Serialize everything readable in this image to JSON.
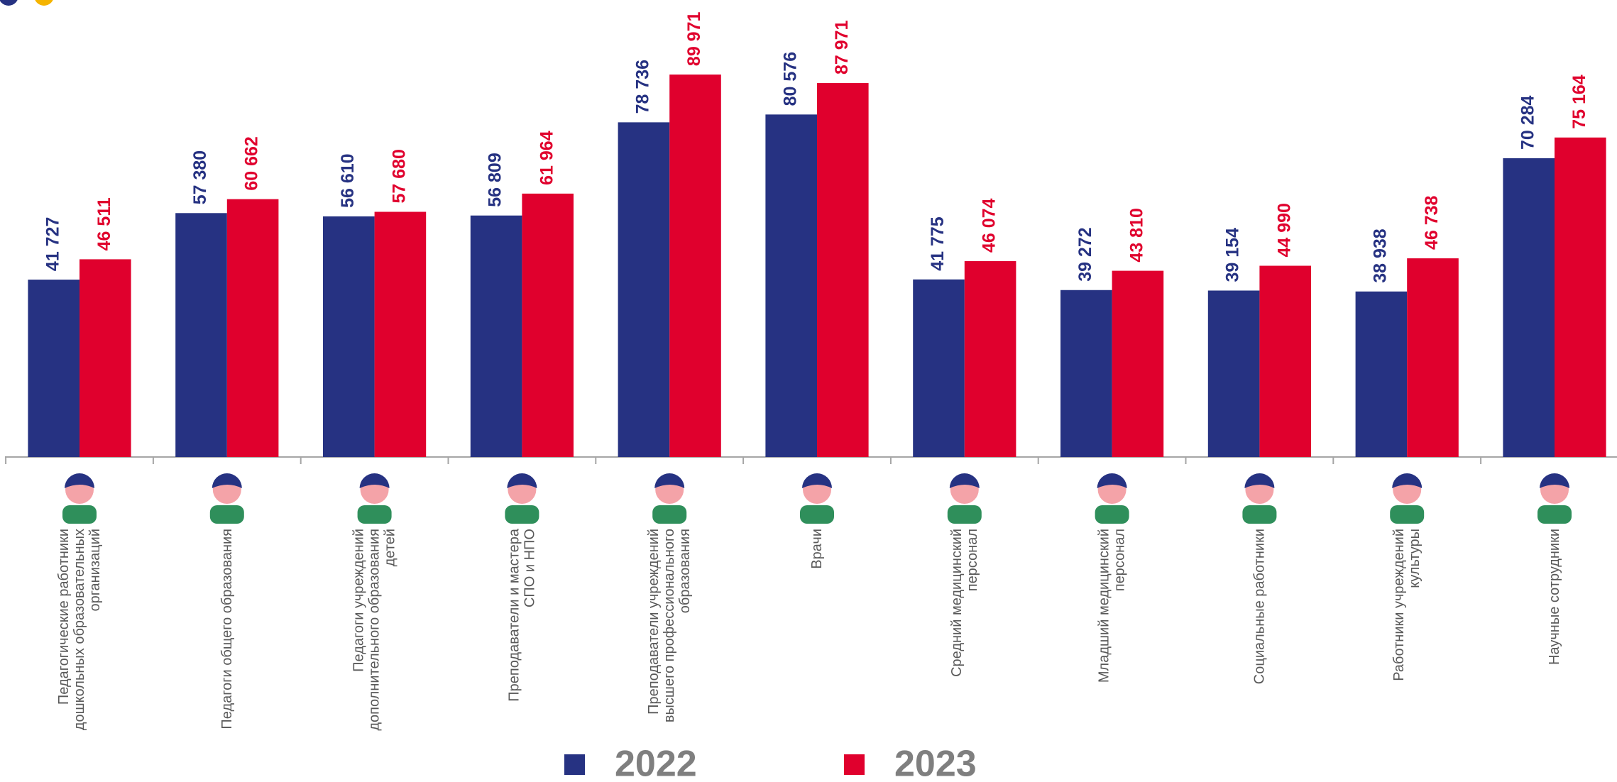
{
  "chart_data": {
    "type": "bar",
    "categories": [
      "Педагогические работники дошкольных образовательных организаций",
      "Педагоги общего образования",
      "Педагоги учреждений дополнительного образования детей",
      "Преподаватели и мастера СПО и НПО",
      "Преподаватели учреждений высшего профессионального образования",
      "Врачи",
      "Средний медицинский персонал",
      "Младший медицинский персонал",
      "Социальные работники",
      "Работники учреждений культуры",
      "Научные сотрудники"
    ],
    "series": [
      {
        "name": "2022",
        "color": "#263282",
        "values": [
          41727,
          57380,
          56610,
          56809,
          78736,
          80576,
          41775,
          39272,
          39154,
          38938,
          70284
        ],
        "value_labels": [
          "41 727",
          "57 380",
          "56 610",
          "56 809",
          "78 736",
          "80 576",
          "41 775",
          "39 272",
          "39 154",
          "38 938",
          "70 284"
        ]
      },
      {
        "name": "2023",
        "color": "#e0002d",
        "values": [
          46511,
          60662,
          57680,
          61964,
          89971,
          87971,
          46074,
          43810,
          44990,
          46738,
          75164
        ],
        "value_labels": [
          "46 511",
          "60 662",
          "57 680",
          "61 964",
          "89 971",
          "87 971",
          "46 074",
          "43 810",
          "44 990",
          "46 738",
          "75 164"
        ]
      }
    ],
    "ylim": [
      0,
      100000
    ]
  }
}
